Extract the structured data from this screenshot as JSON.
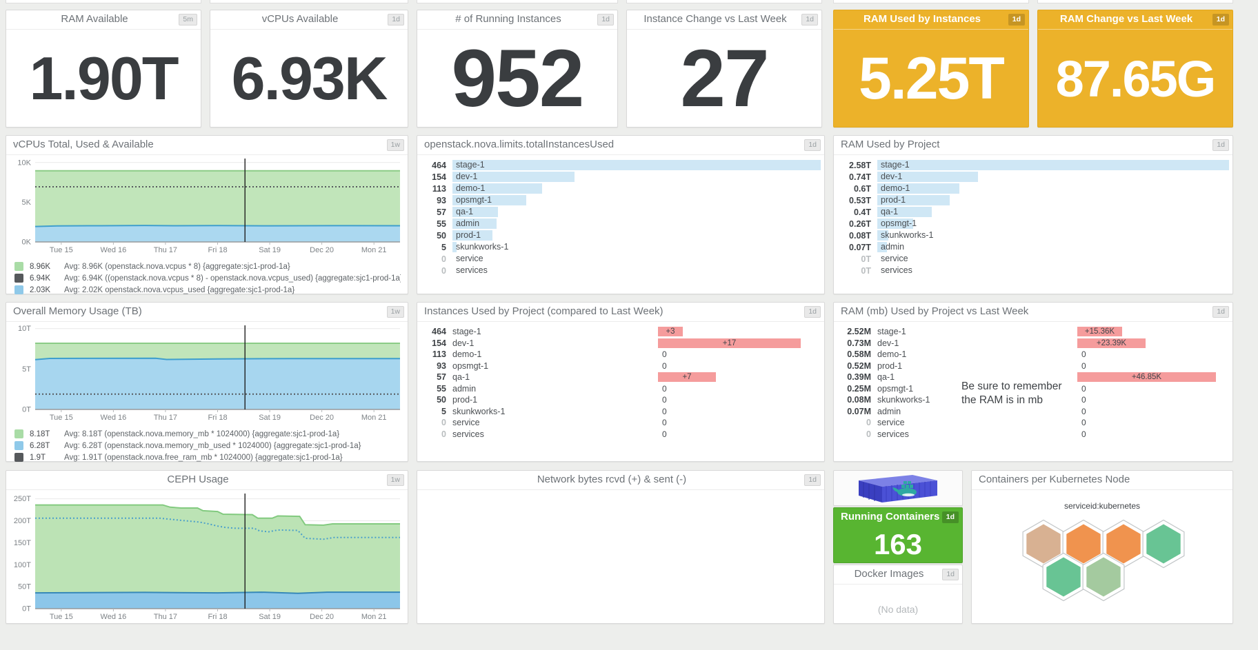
{
  "kpis": [
    {
      "title": "RAM Available",
      "badge": "5m",
      "value": "1.90T",
      "style": "white"
    },
    {
      "title": "vCPUs Available",
      "badge": "1d",
      "value": "6.93K",
      "style": "white"
    },
    {
      "title": "# of Running Instances",
      "badge": "1d",
      "value": "952",
      "style": "white"
    },
    {
      "title": "Instance Change vs Last Week",
      "badge": "1d",
      "value": "27",
      "style": "white"
    },
    {
      "title": "RAM Used by Instances",
      "badge": "1d",
      "value": "5.25T",
      "style": "yellow"
    },
    {
      "title": "RAM Change vs Last Week",
      "badge": "1d",
      "value": "87.65G",
      "style": "yellow"
    }
  ],
  "charts": {
    "vcpus": {
      "title": "vCPUs Total, Used & Available",
      "badge": "1w",
      "type": "area",
      "ylim": [
        0,
        10500
      ],
      "yticks": [
        {
          "v": 0,
          "label": "0K"
        },
        {
          "v": 5000,
          "label": "5K"
        },
        {
          "v": 10000,
          "label": "10K"
        }
      ],
      "xticks": [
        "Tue 15",
        "Wed 16",
        "Thu 17",
        "Fri 18",
        "Sat 19",
        "Dec 20",
        "Mon 21"
      ],
      "cursor": 0.575,
      "series": [
        {
          "name": "openstack.nova.vcpus * 8",
          "kind": "area",
          "fill": "#c1e5ba",
          "line": "#8bcc86",
          "points": [
            [
              0,
              8960
            ],
            [
              1,
              8960
            ]
          ]
        },
        {
          "name": "vcpus available",
          "kind": "dotted",
          "color": "#55595d",
          "points": [
            [
              0,
              6940
            ],
            [
              1,
              6940
            ]
          ]
        },
        {
          "name": "openstack.nova.vcpus_used",
          "kind": "area",
          "fill": "#abd8f0",
          "line": "#3f9fcd",
          "points": [
            [
              0,
              1940
            ],
            [
              0.06,
              2020
            ],
            [
              0.18,
              2040
            ],
            [
              0.3,
              2070
            ],
            [
              0.38,
              2040
            ],
            [
              0.5,
              2060
            ],
            [
              0.64,
              2030
            ],
            [
              0.82,
              2050
            ],
            [
              1,
              2040
            ]
          ]
        }
      ],
      "legend": [
        {
          "swatch": "#a9dca6",
          "value": "8.96K",
          "desc": "Avg: 8.96K  (openstack.nova.vcpus * 8)   {aggregate:sjc1-prod-1a}"
        },
        {
          "swatch": "#56595c",
          "value": "6.94K",
          "desc": "Avg: 6.94K  ((openstack.nova.vcpus * 8) - openstack.nova.vcpus_used) {aggregate:sjc1-prod-1a}"
        },
        {
          "swatch": "#8fc9e9",
          "value": "2.03K",
          "desc": "Avg: 2.02K  openstack.nova.vcpus_used   {aggregate:sjc1-prod-1a}"
        }
      ]
    },
    "memory": {
      "title": "Overall Memory Usage (TB)",
      "badge": "1w",
      "type": "area",
      "ylim": [
        0,
        10.4
      ],
      "yticks": [
        {
          "v": 0,
          "label": "0T"
        },
        {
          "v": 5,
          "label": "5T"
        },
        {
          "v": 10,
          "label": "10T"
        }
      ],
      "xticks": [
        "Tue 15",
        "Wed 16",
        "Thu 17",
        "Fri 18",
        "Sat 19",
        "Dec 20",
        "Mon 21"
      ],
      "cursor": 0.575,
      "series": [
        {
          "name": "openstack.nova.memory_mb",
          "kind": "area",
          "fill": "#c1e5ba",
          "line": "#8bcc86",
          "points": [
            [
              0,
              8.18
            ],
            [
              1,
              8.18
            ]
          ]
        },
        {
          "name": "openstack.nova.memory_mb_used",
          "kind": "area",
          "fill": "#a7d6ef",
          "line": "#3e9ecd",
          "points": [
            [
              0,
              6.16
            ],
            [
              0.04,
              6.31
            ],
            [
              0.33,
              6.33
            ],
            [
              0.36,
              6.18
            ],
            [
              0.5,
              6.25
            ],
            [
              0.7,
              6.29
            ],
            [
              1,
              6.29
            ]
          ]
        },
        {
          "name": "openstack.nova.free_ram_mb",
          "kind": "dotted",
          "color": "#55595d",
          "points": [
            [
              0,
              1.9
            ],
            [
              1,
              1.9
            ]
          ]
        }
      ],
      "legend": [
        {
          "swatch": "#a9dca6",
          "value": "8.18T",
          "desc": "Avg: 8.18T  (openstack.nova.memory_mb * 1024000) {aggregate:sjc1-prod-1a}"
        },
        {
          "swatch": "#8fc9e9",
          "value": "6.28T",
          "desc": "Avg: 6.28T  (openstack.nova.memory_mb_used * 1024000) {aggregate:sjc1-prod-1a}"
        },
        {
          "swatch": "#56595c",
          "value": "1.9T",
          "desc": "Avg: 1.91T  (openstack.nova.free_ram_mb * 1024000) {aggregate:sjc1-prod-1a}"
        }
      ]
    },
    "ceph": {
      "title": "CEPH Usage",
      "badge": "1w",
      "type": "area",
      "center_title": true,
      "ylim": [
        0,
        262
      ],
      "yticks": [
        {
          "v": 0,
          "label": "0T"
        },
        {
          "v": 50,
          "label": "50T"
        },
        {
          "v": 100,
          "label": "100T"
        },
        {
          "v": 150,
          "label": "150T"
        },
        {
          "v": 200,
          "label": "200T"
        },
        {
          "v": 250,
          "label": "250T"
        }
      ],
      "xticks": [
        "Tue 15",
        "Wed 16",
        "Thu 17",
        "Fri 18",
        "Sat 19",
        "Dec 20",
        "Mon 21"
      ],
      "cursor": 0.575,
      "series": [
        {
          "name": "ceph total",
          "kind": "area",
          "fill": "#bce3b5",
          "line": "#82ca7f",
          "points": [
            [
              0,
              236
            ],
            [
              0.35,
              236
            ],
            [
              0.37,
              231
            ],
            [
              0.4,
              229
            ],
            [
              0.445,
              229
            ],
            [
              0.46,
              223
            ],
            [
              0.5,
              221
            ],
            [
              0.515,
              215
            ],
            [
              0.595,
              214
            ],
            [
              0.61,
              206
            ],
            [
              0.65,
              206
            ],
            [
              0.665,
              211
            ],
            [
              0.725,
              210
            ],
            [
              0.74,
              191
            ],
            [
              0.79,
              190
            ],
            [
              0.815,
              193
            ],
            [
              1,
              193
            ]
          ]
        },
        {
          "name": "ceph used",
          "kind": "area",
          "fill": "#8cc6e9",
          "line": "#3688b8",
          "points": [
            [
              0,
              36
            ],
            [
              0.3,
              37
            ],
            [
              0.5,
              36
            ],
            [
              0.62,
              37.5
            ],
            [
              0.72,
              35
            ],
            [
              0.8,
              37.5
            ],
            [
              1,
              37.5
            ]
          ]
        },
        {
          "name": "ceph available",
          "kind": "dotted",
          "color": "#4a9fca",
          "points": [
            [
              0,
              206
            ],
            [
              0.34,
              206
            ],
            [
              0.4,
              201
            ],
            [
              0.45,
              197
            ],
            [
              0.475,
              193
            ],
            [
              0.5,
              188
            ],
            [
              0.52,
              185
            ],
            [
              0.55,
              183
            ],
            [
              0.6,
              183
            ],
            [
              0.615,
              177
            ],
            [
              0.64,
              175
            ],
            [
              0.665,
              179
            ],
            [
              0.72,
              178
            ],
            [
              0.74,
              160
            ],
            [
              0.79,
              158
            ],
            [
              0.82,
              162
            ],
            [
              1,
              162
            ]
          ]
        }
      ],
      "legend": []
    },
    "network": {
      "title": "Network bytes rcvd (+) & sent (-)",
      "badge": "1d",
      "empty": true
    }
  },
  "toplists": {
    "instances": {
      "title": "openstack.nova.limits.totalInstancesUsed",
      "badge": "1d",
      "valw": 36,
      "rows": [
        {
          "value": "464",
          "num": 464,
          "label": "stage-1"
        },
        {
          "value": "154",
          "num": 154,
          "label": "dev-1"
        },
        {
          "value": "113",
          "num": 113,
          "label": "demo-1"
        },
        {
          "value": "93",
          "num": 93,
          "label": "opsmgt-1"
        },
        {
          "value": "57",
          "num": 57,
          "label": "qa-1"
        },
        {
          "value": "55",
          "num": 55,
          "label": "admin"
        },
        {
          "value": "50",
          "num": 50,
          "label": "prod-1"
        },
        {
          "value": "5",
          "num": 5,
          "label": "skunkworks-1"
        },
        {
          "value": "0",
          "num": 0,
          "label": "service"
        },
        {
          "value": "0",
          "num": 0,
          "label": "services"
        }
      ]
    },
    "ram_project": {
      "title": "RAM Used by Project",
      "badge": "1d",
      "valw": 48,
      "rows": [
        {
          "value": "2.58T",
          "num": 2.58,
          "label": "stage-1"
        },
        {
          "value": "0.74T",
          "num": 0.74,
          "label": "dev-1"
        },
        {
          "value": "0.6T",
          "num": 0.6,
          "label": "demo-1"
        },
        {
          "value": "0.53T",
          "num": 0.53,
          "label": "prod-1"
        },
        {
          "value": "0.4T",
          "num": 0.4,
          "label": "qa-1"
        },
        {
          "value": "0.26T",
          "num": 0.26,
          "label": "opsmgt-1"
        },
        {
          "value": "0.08T",
          "num": 0.08,
          "label": "skunkworks-1"
        },
        {
          "value": "0.07T",
          "num": 0.07,
          "label": "admin"
        },
        {
          "value": "0T",
          "num": 0,
          "label": "service"
        },
        {
          "value": "0T",
          "num": 0,
          "label": "services"
        }
      ]
    }
  },
  "change_toplists": {
    "instances_change": {
      "title": "Instances Used by Project (compared to Last Week)",
      "badge": "1d",
      "valw": 36,
      "bar_offset": 343,
      "rows": [
        {
          "value": "464",
          "label": "stage-1",
          "change": "+3",
          "bar": 36
        },
        {
          "value": "154",
          "label": "dev-1",
          "change": "+17",
          "bar": 207
        },
        {
          "value": "113",
          "label": "demo-1",
          "change": "0",
          "bar": 0
        },
        {
          "value": "93",
          "label": "opsmgt-1",
          "change": "0",
          "bar": 0
        },
        {
          "value": "57",
          "label": "qa-1",
          "change": "+7",
          "bar": 84
        },
        {
          "value": "55",
          "label": "admin",
          "change": "0",
          "bar": 0
        },
        {
          "value": "50",
          "label": "prod-1",
          "change": "0",
          "bar": 0
        },
        {
          "value": "5",
          "label": "skunkworks-1",
          "change": "0",
          "bar": 0
        },
        {
          "value": "0",
          "label": "service",
          "change": "0",
          "bar": 0
        },
        {
          "value": "0",
          "label": "services",
          "change": "0",
          "bar": 0
        }
      ]
    },
    "ram_change": {
      "title": "RAM (mb) Used by Project vs Last Week",
      "badge": "1d",
      "valw": 48,
      "bar_offset": 347,
      "note": "Be sure to remember the RAM is in mb",
      "rows": [
        {
          "value": "2.52M",
          "label": "stage-1",
          "change": "+15.36K",
          "bar": 65
        },
        {
          "value": "0.73M",
          "label": "dev-1",
          "change": "+23.39K",
          "bar": 99
        },
        {
          "value": "0.58M",
          "label": "demo-1",
          "change": "0",
          "bar": 0
        },
        {
          "value": "0.52M",
          "label": "prod-1",
          "change": "0",
          "bar": 0
        },
        {
          "value": "0.39M",
          "label": "qa-1",
          "change": "+46.85K",
          "bar": 201
        },
        {
          "value": "0.25M",
          "label": "opsmgt-1",
          "change": "0",
          "bar": 0
        },
        {
          "value": "0.08M",
          "label": "skunkworks-1",
          "change": "0",
          "bar": 0
        },
        {
          "value": "0.07M",
          "label": "admin",
          "change": "0",
          "bar": 0
        },
        {
          "value": "0",
          "label": "service",
          "change": "0",
          "bar": 0
        },
        {
          "value": "0",
          "label": "services",
          "change": "0",
          "bar": 0
        }
      ]
    }
  },
  "containers_col": {
    "image_name": "docker-shipping-container",
    "running": {
      "title": "Running Containers",
      "badge": "1d",
      "value": "163",
      "accent": "#58b531"
    },
    "images": {
      "title": "Docker Images",
      "badge": "1d",
      "status": "(No data)"
    }
  },
  "kubernetes": {
    "title": "Containers per Kubernetes Node",
    "scope_label": "serviceid:kubernetes",
    "hex_colors": [
      "#d8b192",
      "#f0934e",
      "#f0934e",
      "#68c494",
      "#68c494",
      "#a4ca9f"
    ]
  }
}
